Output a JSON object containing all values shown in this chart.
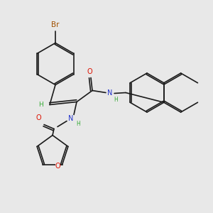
{
  "bg_color": "#e8e8e8",
  "bond_color": "#1a1a1a",
  "br_color": "#a05000",
  "o_color": "#dd1100",
  "n_color": "#2233cc",
  "h_color": "#33aa33",
  "lw": 1.2,
  "fs": 7.0,
  "xlim": [
    0,
    3.0
  ],
  "ylim": [
    0,
    3.0
  ]
}
